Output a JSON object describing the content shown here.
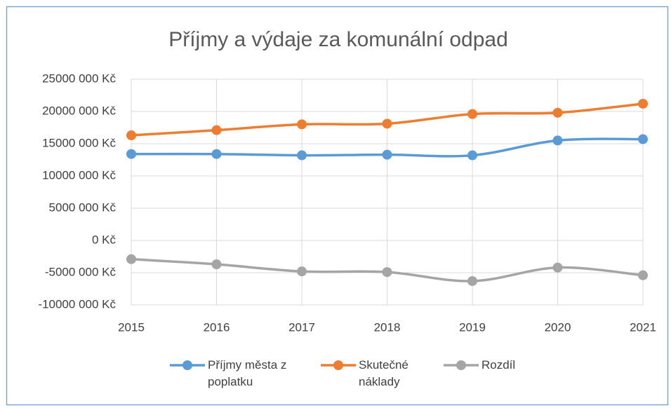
{
  "chart_data": {
    "type": "line",
    "title": "Příjmy a výdaje za komunální odpad",
    "x": [
      2015,
      2016,
      2017,
      2018,
      2019,
      2020,
      2021
    ],
    "xlim": [
      2015,
      2021
    ],
    "xticks": [
      2015,
      2016,
      2017,
      2018,
      2019,
      2020,
      2021
    ],
    "ylim": [
      -10000000,
      25000000
    ],
    "yticks": [
      {
        "value": -10000000,
        "label": "-10000 000 Kč"
      },
      {
        "value": -5000000,
        "label": "-5000 000 Kč"
      },
      {
        "value": 0,
        "label": "0 Kč"
      },
      {
        "value": 5000000,
        "label": "5000 000 Kč"
      },
      {
        "value": 10000000,
        "label": "10000 000 Kč"
      },
      {
        "value": 15000000,
        "label": "15000 000 Kč"
      },
      {
        "value": 20000000,
        "label": "20000 000 Kč"
      },
      {
        "value": 25000000,
        "label": "25000 000 Kč"
      }
    ],
    "grid": true,
    "smooth": true,
    "legend": "bottom",
    "series": [
      {
        "name": "Příjmy města z poplatku",
        "color": "#5b9bd5",
        "values": [
          13400000,
          13400000,
          13200000,
          13300000,
          13200000,
          15500000,
          15700000
        ]
      },
      {
        "name": "Skutečné náklady",
        "color": "#ed7d31",
        "values": [
          16300000,
          17100000,
          18000000,
          18100000,
          19600000,
          19800000,
          21200000
        ]
      },
      {
        "name": "Rozdíl",
        "color": "#a5a5a5",
        "values": [
          -2900000,
          -3700000,
          -4800000,
          -4900000,
          -6300000,
          -4200000,
          -5400000
        ]
      }
    ]
  }
}
